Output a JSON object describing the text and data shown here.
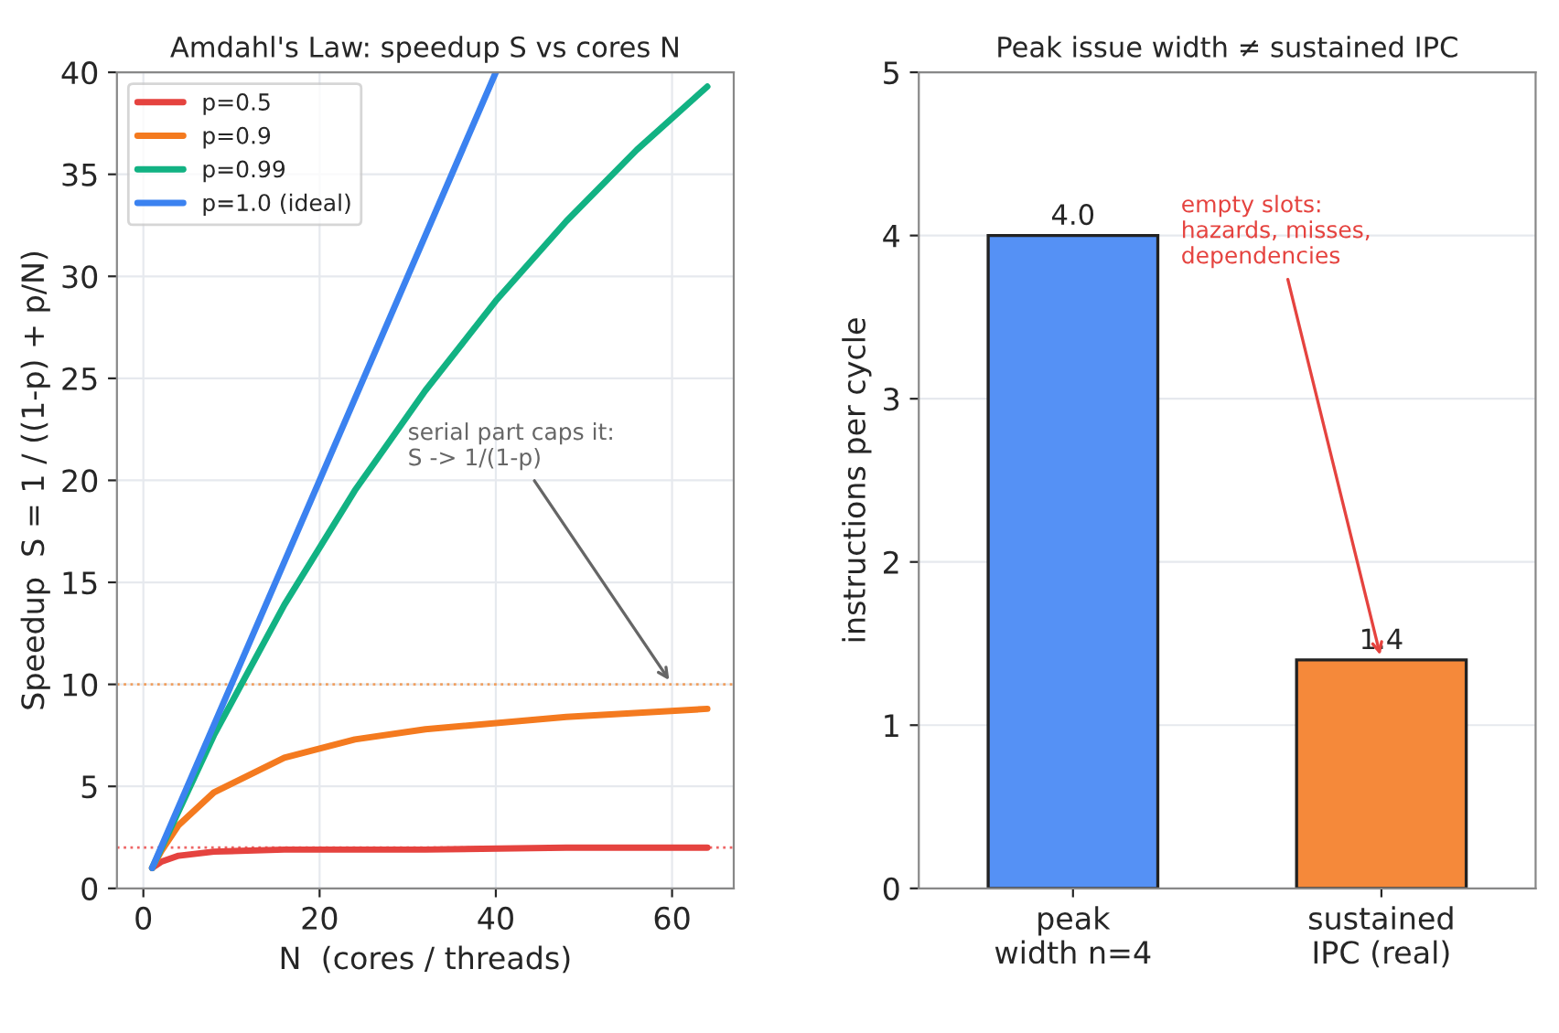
{
  "chart_data": [
    {
      "type": "line",
      "title": "Amdahl's Law: speedup S vs cores N",
      "xlabel": "N  (cores / threads)",
      "ylabel": "Speedup  S = 1 / ((1-p) + p/N)",
      "xlim": [
        -3,
        67
      ],
      "xticks": [
        0,
        20,
        40,
        60
      ],
      "ylim": [
        0,
        40
      ],
      "yticks": [
        0,
        5,
        10,
        15,
        20,
        25,
        30,
        35,
        40
      ],
      "grid": true,
      "legend": "top left",
      "series": [
        {
          "name": "p=0.5",
          "color": "#e5433f",
          "x": [
            1,
            2,
            4,
            8,
            16,
            32,
            48,
            64
          ],
          "values": [
            1.0,
            1.3,
            1.6,
            1.8,
            1.9,
            1.9,
            2.0,
            2.0
          ]
        },
        {
          "name": "p=0.9",
          "color": "#f47a1f",
          "x": [
            1,
            2,
            4,
            8,
            16,
            24,
            32,
            48,
            64
          ],
          "values": [
            1.0,
            1.8,
            3.1,
            4.7,
            6.4,
            7.3,
            7.8,
            8.4,
            8.8
          ]
        },
        {
          "name": "p=0.99",
          "color": "#12b283",
          "x": [
            1,
            8,
            16,
            24,
            32,
            40,
            48,
            56,
            64
          ],
          "values": [
            1.0,
            7.5,
            13.9,
            19.5,
            24.4,
            28.8,
            32.7,
            36.2,
            39.3
          ]
        },
        {
          "name": "p=1.0 (ideal)",
          "color": "#3b82f0",
          "x": [
            1,
            40
          ],
          "values": [
            1,
            40
          ]
        }
      ],
      "ref_lines": [
        {
          "axis": "y",
          "value": 10,
          "color": "#f0a060",
          "line_style": "dotted"
        },
        {
          "axis": "y",
          "value": 2,
          "color": "#ee6666",
          "line_style": "dotted"
        }
      ],
      "annotations": [
        {
          "text": "serial part caps it:\nS -> 1/(1-p)",
          "x": 60,
          "y": 10
        }
      ]
    },
    {
      "type": "bar",
      "title": "Peak issue width ≠ sustained IPC",
      "ylabel": "instructions per cycle",
      "categories": [
        "peak\nwidth n=4",
        "sustained\nIPC (real)"
      ],
      "values": [
        4.0,
        1.4
      ],
      "colors": [
        "#5591f5",
        "#f5893a"
      ],
      "value_labels": [
        "4.0",
        "1.4"
      ],
      "ylim": [
        0,
        5
      ],
      "yticks": [
        0,
        1,
        2,
        3,
        4,
        5
      ],
      "grid": "y",
      "annotations": [
        {
          "text": "empty slots:\nhazards, misses,\ndependencies",
          "x": "sustained\nIPC (real)",
          "y": 1.4
        }
      ]
    }
  ]
}
